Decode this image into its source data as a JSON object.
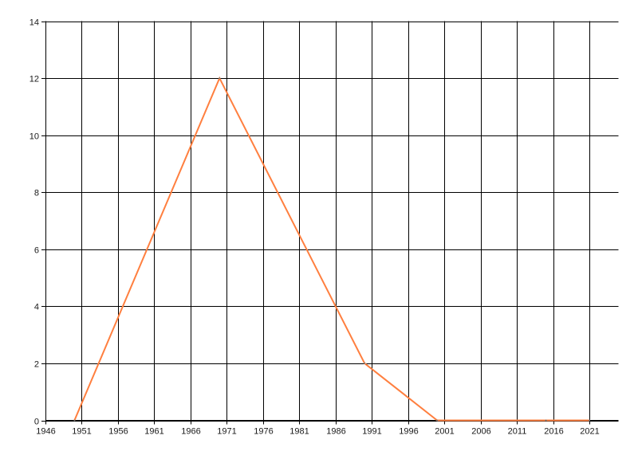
{
  "chart_data": {
    "type": "line",
    "title": "",
    "xlabel": "",
    "ylabel": "",
    "xlim": [
      1946,
      2025
    ],
    "ylim": [
      0,
      14
    ],
    "x_ticks": [
      1946,
      1951,
      1956,
      1961,
      1966,
      1971,
      1976,
      1981,
      1986,
      1991,
      1996,
      2001,
      2006,
      2011,
      2016,
      2021
    ],
    "y_ticks": [
      0,
      2,
      4,
      6,
      8,
      10,
      12,
      14
    ],
    "grid": true,
    "legend": "none",
    "series": [
      {
        "color": "#ff7f3f",
        "x": [
          1950,
          1970,
          1990,
          2000,
          2015,
          2021
        ],
        "y": [
          0,
          12,
          2,
          0,
          0,
          0
        ]
      }
    ]
  }
}
